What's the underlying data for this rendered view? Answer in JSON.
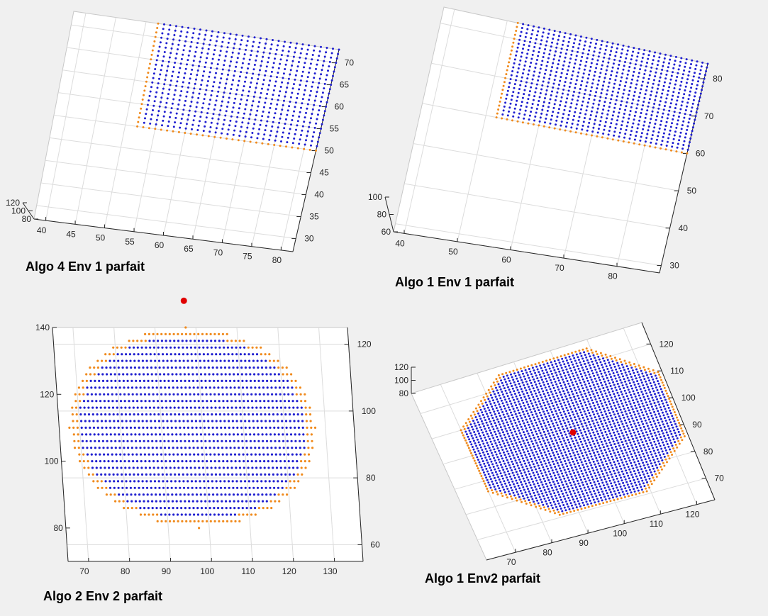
{
  "figure": {
    "background": "#f0f0f0",
    "axes_color": "#ffffff",
    "grid_color": "#dcdcdc",
    "interior_color": "#1f1fd0",
    "border_color": "#f08a1c",
    "center_color": "#e00000"
  },
  "chart_data": [
    {
      "type": "scatter",
      "projection": "3d",
      "title": "Algo 4 Env 1 parfait",
      "shape": "rectangle",
      "x_ticks": [
        "40",
        "45",
        "50",
        "55",
        "60",
        "65",
        "70",
        "75",
        "80"
      ],
      "y_ticks": [
        "30",
        "35",
        "40",
        "45",
        "50",
        "55",
        "60",
        "65",
        "70"
      ],
      "z_ticks": [
        "80",
        "100",
        "120"
      ],
      "xlim": [
        38,
        82
      ],
      "ylim": [
        27,
        73
      ],
      "zlim": [
        80,
        120
      ],
      "region": {
        "x": [
          52,
          82
        ],
        "y": [
          50,
          73
        ]
      },
      "interior_series": "Interior points",
      "border_series": "Border points"
    },
    {
      "type": "scatter",
      "projection": "3d",
      "title": "Algo 1 Env 1 parfait",
      "shape": "rectangle",
      "x_ticks": [
        "40",
        "50",
        "60",
        "70",
        "80"
      ],
      "y_ticks": [
        "30",
        "40",
        "50",
        "60",
        "70",
        "80"
      ],
      "z_ticks": [
        "60",
        "80",
        "100"
      ],
      "xlim": [
        38,
        88
      ],
      "ylim": [
        28,
        84
      ],
      "zlim": [
        60,
        100
      ],
      "region": {
        "x": [
          52,
          88
        ],
        "y": [
          60,
          84
        ]
      },
      "interior_series": "Interior points",
      "border_series": "Border points"
    },
    {
      "type": "scatter",
      "projection": "3d",
      "title": "Algo 2 Env 2 parfait",
      "shape": "ellipse",
      "x_ticks": [
        "70",
        "80",
        "90",
        "100",
        "110",
        "120",
        "130"
      ],
      "y_ticks": [
        "60",
        "80",
        "100",
        "120"
      ],
      "z_ticks": [
        "80",
        "100",
        "120",
        "140"
      ],
      "xlim": [
        65,
        137
      ],
      "ylim": [
        55,
        125
      ],
      "zlim": [
        70,
        140
      ],
      "region": {
        "center_x": 97.5,
        "center_y": 95,
        "radius_x": 30,
        "radius_y": 30
      },
      "center_point": {
        "x": 97.5,
        "y": 95
      },
      "interior_series": "Interior points",
      "border_series": "Border points"
    },
    {
      "type": "scatter",
      "projection": "3d",
      "title": "Algo 1 Env2 parfait",
      "shape": "polygon",
      "x_ticks": [
        "70",
        "80",
        "90",
        "100",
        "110",
        "120"
      ],
      "y_ticks": [
        "70",
        "80",
        "90",
        "100",
        "110",
        "120"
      ],
      "z_ticks": [
        "80",
        "100",
        "120"
      ],
      "xlim": [
        62,
        125
      ],
      "ylim": [
        62,
        128
      ],
      "zlim": [
        80,
        120
      ],
      "region": {
        "center_x": 97,
        "center_y": 98,
        "radius": 30
      },
      "center_point": {
        "x": 97,
        "y": 98
      },
      "interior_series": "Interior points",
      "border_series": "Border points"
    }
  ]
}
